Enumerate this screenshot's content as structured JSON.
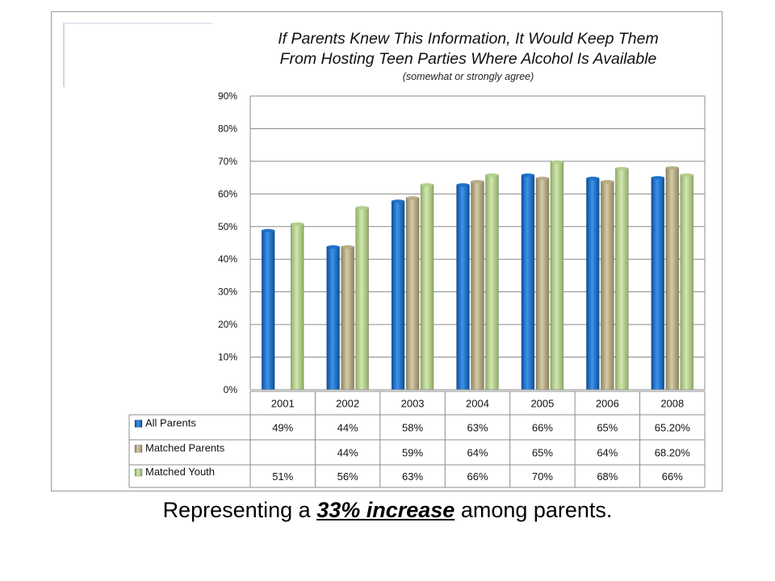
{
  "chart_data": {
    "type": "bar",
    "title_line1": "If Parents Knew This Information, It Would Keep Them",
    "title_line2": "From Hosting Teen Parties Where Alcohol Is Available",
    "subtitle": "(somewhat or strongly agree)",
    "categories": [
      "2001",
      "2002",
      "2003",
      "2004",
      "2005",
      "2006",
      "2008"
    ],
    "y_ticks": [
      "0%",
      "10%",
      "20%",
      "30%",
      "40%",
      "50%",
      "60%",
      "70%",
      "80%",
      "90%"
    ],
    "ylim": [
      0,
      90
    ],
    "grid": true,
    "series": [
      {
        "name": "All Parents",
        "color": "#1e6fc8",
        "values": [
          49,
          44,
          58,
          63,
          66,
          65,
          65.2
        ],
        "labels": [
          "49%",
          "44%",
          "58%",
          "63%",
          "66%",
          "65%",
          "65.20%"
        ]
      },
      {
        "name": "Matched Parents",
        "color": "#b8ab85",
        "values": [
          null,
          44,
          59,
          64,
          65,
          64,
          68.2
        ],
        "labels": [
          "",
          "44%",
          "59%",
          "64%",
          "65%",
          "64%",
          "68.20%"
        ]
      },
      {
        "name": "Matched Youth",
        "color": "#b3cf8c",
        "values": [
          51,
          56,
          63,
          66,
          70,
          68,
          66
        ],
        "labels": [
          "51%",
          "56%",
          "63%",
          "66%",
          "70%",
          "68%",
          "66%"
        ]
      }
    ]
  },
  "caption": {
    "prefix": "Representing a ",
    "emphasis": "33% increase",
    "suffix": " among parents."
  }
}
